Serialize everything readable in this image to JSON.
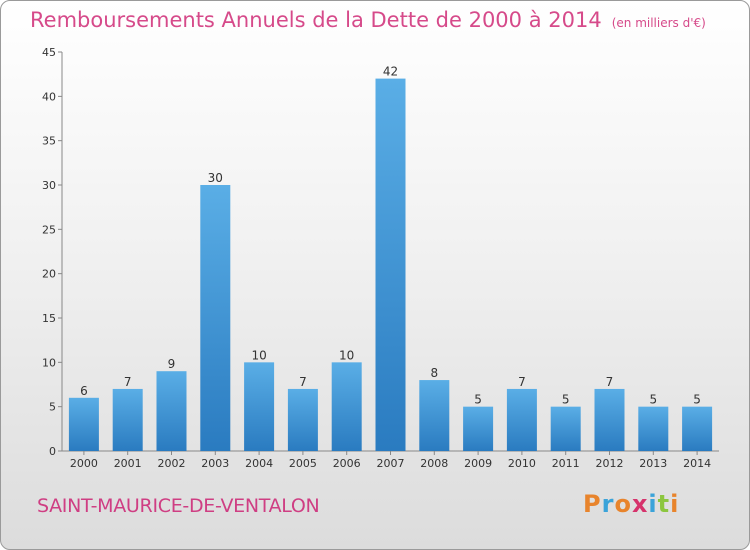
{
  "header": {
    "title": "Remboursements Annuels de la Dette de 2000 à 2014",
    "unit": "(en milliers d'€)"
  },
  "footer": {
    "commune": "SAINT-MAURICE-DE-VENTALON",
    "logo": "Proxiti",
    "logo_colors": [
      "#e8842c",
      "#3aa3d9",
      "#e8842c",
      "#d6336c",
      "#3aa3d9",
      "#8cc63f",
      "#e8842c"
    ]
  },
  "colors": {
    "bar_top": "#5aaee6",
    "bar_bottom": "#2a7bc0",
    "title": "#d64a8a"
  },
  "chart_data": {
    "type": "bar",
    "categories": [
      "2000",
      "2001",
      "2002",
      "2003",
      "2004",
      "2005",
      "2006",
      "2007",
      "2008",
      "2009",
      "2010",
      "2011",
      "2012",
      "2013",
      "2014"
    ],
    "values": [
      6,
      7,
      9,
      30,
      10,
      7,
      10,
      42,
      8,
      5,
      7,
      5,
      7,
      5,
      5
    ],
    "ylim": [
      0,
      45
    ],
    "yticks": [
      0,
      5,
      10,
      15,
      20,
      25,
      30,
      35,
      40,
      45
    ],
    "grid": false,
    "legend": "none"
  }
}
